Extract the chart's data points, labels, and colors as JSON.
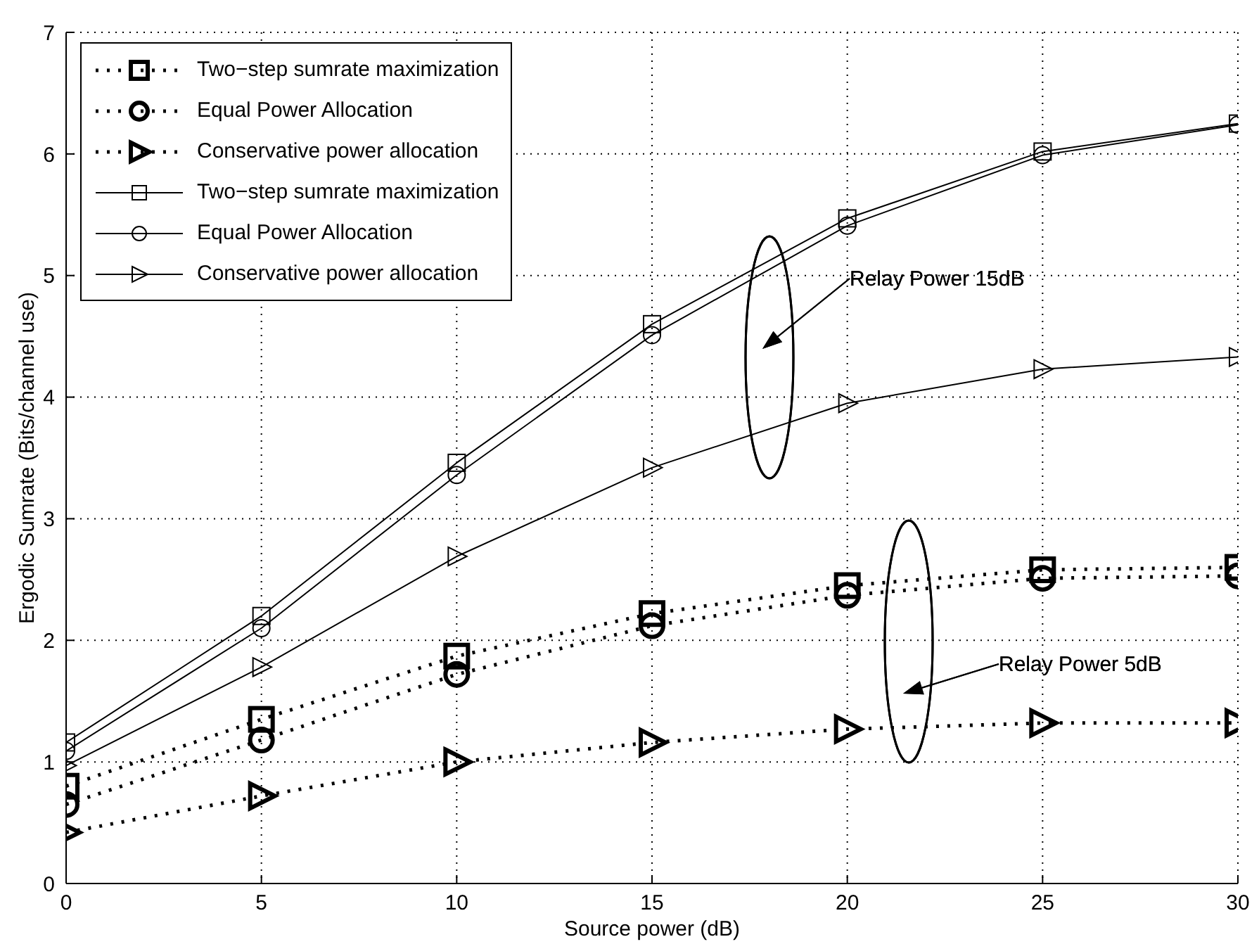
{
  "chart_data": {
    "type": "line",
    "xlabel": "Source power (dB)",
    "ylabel": "Ergodic Sumrate (Bits/channel use)",
    "x": [
      0,
      5,
      10,
      15,
      20,
      25,
      30
    ],
    "xlim": [
      0,
      30
    ],
    "xticks": [
      0,
      5,
      10,
      15,
      20,
      25,
      30
    ],
    "ylim": [
      0,
      7
    ],
    "yticks": [
      0,
      1,
      2,
      3,
      4,
      5,
      6,
      7
    ],
    "grid": true,
    "legend": "top left",
    "series": [
      {
        "name": "Two−step sumrate maximization",
        "color": "#000000",
        "marker": "square",
        "line_style": "dotted",
        "values": [
          0.8,
          1.35,
          1.87,
          2.22,
          2.45,
          2.58,
          2.6
        ]
      },
      {
        "name": "Equal Power Allocation",
        "color": "#000000",
        "marker": "circle",
        "line_style": "dotted",
        "values": [
          0.65,
          1.18,
          1.72,
          2.12,
          2.37,
          2.51,
          2.53
        ]
      },
      {
        "name": "Conservative power allocation",
        "color": "#000000",
        "marker": "triangle",
        "line_style": "dotted",
        "values": [
          0.42,
          0.72,
          1.0,
          1.16,
          1.27,
          1.32,
          1.32
        ]
      },
      {
        "name": "Two−step sumrate maximization",
        "color": "#000000",
        "marker": "square",
        "line_style": "solid",
        "values": [
          1.16,
          2.2,
          3.46,
          4.6,
          5.47,
          6.02,
          6.25
        ]
      },
      {
        "name": "Equal Power Allocation",
        "color": "#000000",
        "marker": "circle",
        "line_style": "solid",
        "values": [
          1.09,
          2.1,
          3.36,
          4.51,
          5.41,
          5.99,
          6.24
        ]
      },
      {
        "name": "Conservative power allocation",
        "color": "#000000",
        "marker": "triangle",
        "line_style": "solid",
        "values": [
          0.97,
          1.78,
          2.69,
          3.42,
          3.95,
          4.23,
          4.33
        ]
      }
    ],
    "annotations": [
      "Relay Power 15dB",
      "Relay Power 5dB"
    ]
  }
}
